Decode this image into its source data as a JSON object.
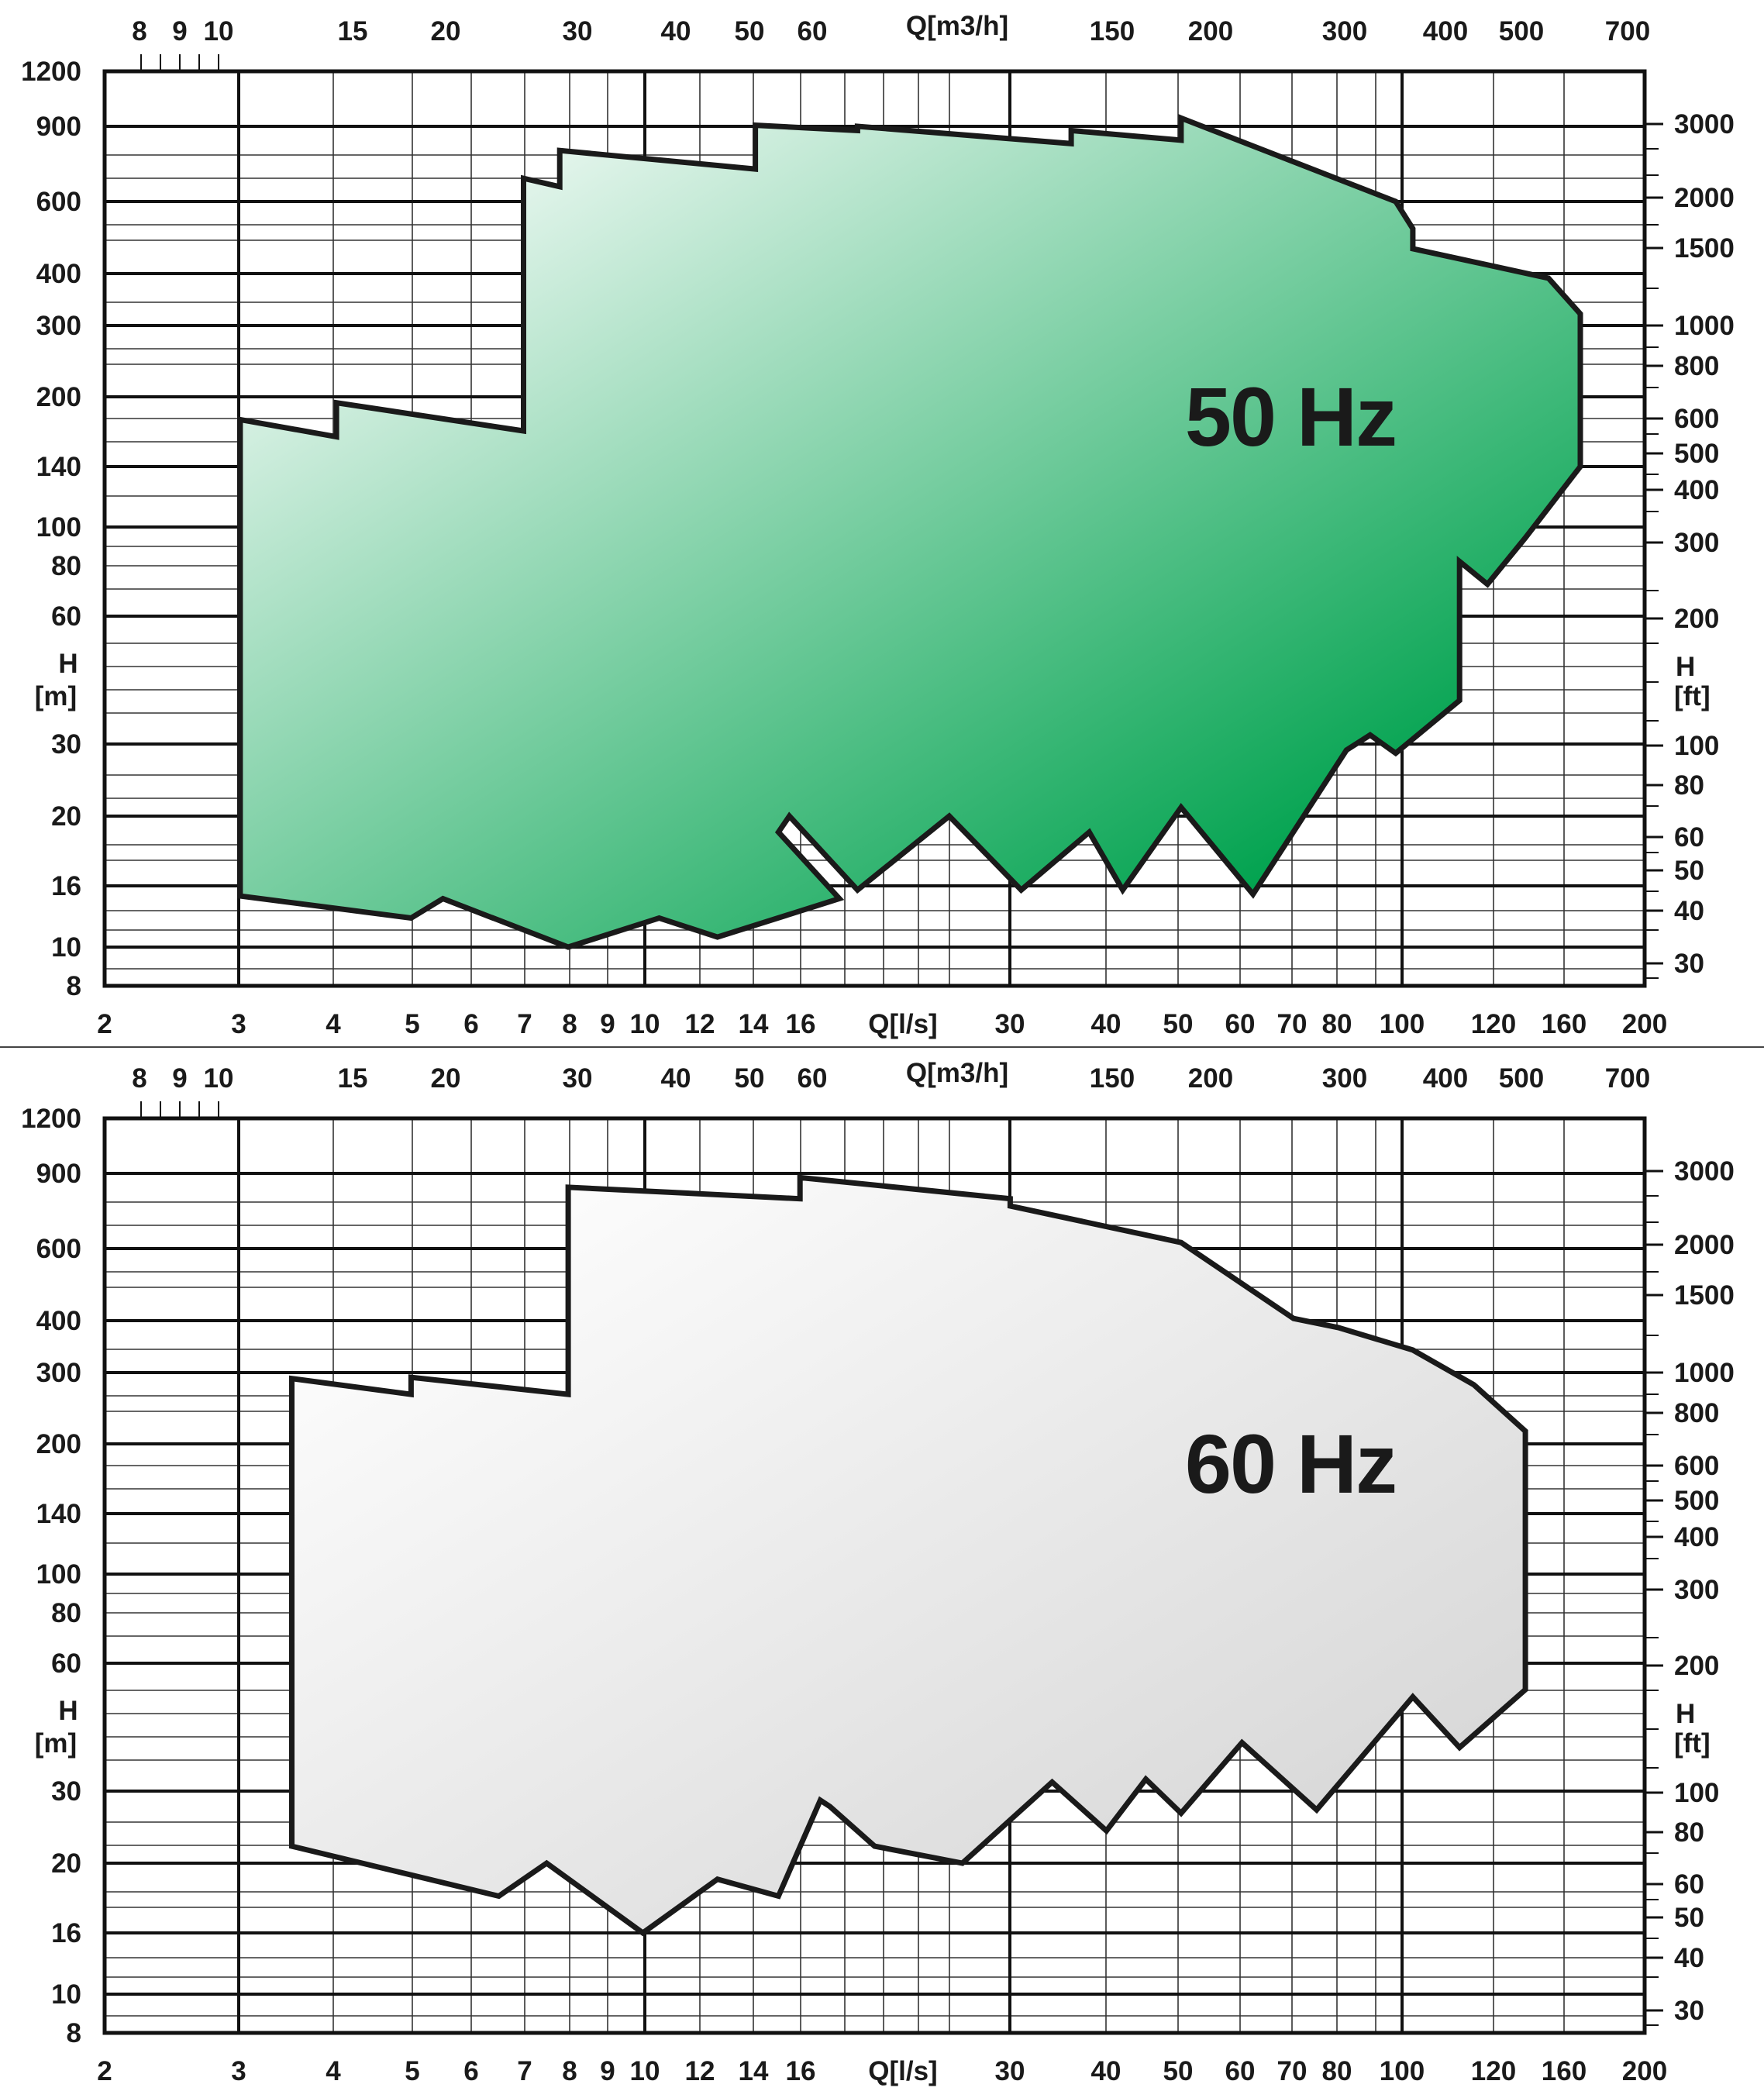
{
  "chart_data": [
    {
      "type": "area",
      "title": "50 Hz",
      "x_axis_bottom": {
        "label": "Q[l/s]",
        "scale": "log",
        "range": [
          2,
          200
        ],
        "ticks": [
          "2",
          "3",
          "4",
          "5",
          "6",
          "7",
          "8",
          "9",
          "10",
          "12",
          "14",
          "16",
          "30",
          "40",
          "50",
          "60",
          "70",
          "80",
          "100",
          "120",
          "160",
          "200"
        ]
      },
      "x_axis_top": {
        "label": "Q[m3/h]",
        "scale": "log",
        "ticks": [
          "8",
          "9",
          "10",
          "15",
          "20",
          "30",
          "40",
          "50",
          "60",
          "150",
          "200",
          "300",
          "400",
          "500",
          "700"
        ]
      },
      "y_axis_left": {
        "label_line1": "H",
        "label_line2": "[m]",
        "ticks": [
          "1200",
          "900",
          "600",
          "400",
          "300",
          "200",
          "140",
          "100",
          "80",
          "60",
          "30",
          "20",
          "16",
          "10",
          "8"
        ]
      },
      "y_axis_right": {
        "label_line1": "H",
        "label_line2": "[ft]",
        "ticks": [
          "3000",
          "2000",
          "1500",
          "1000",
          "800",
          "600",
          "500",
          "400",
          "300",
          "200",
          "100",
          "80",
          "60",
          "50",
          "40",
          "30"
        ]
      },
      "grid": true,
      "fill_gradient": [
        "#ffffff",
        "#00a24e"
      ],
      "series": [
        {
          "values": [
            [
              3,
              178
            ],
            [
              4,
              163
            ],
            [
              4,
              194
            ],
            [
              7,
              168
            ],
            [
              7,
              680
            ],
            [
              7.8,
              650
            ],
            [
              7.8,
              790
            ],
            [
              14,
              715
            ],
            [
              14,
              905
            ],
            [
              19,
              880
            ],
            [
              19,
              900
            ],
            [
              36,
              820
            ],
            [
              36,
              880
            ],
            [
              50,
              835
            ],
            [
              50,
              940
            ],
            [
              95,
              600
            ],
            [
              100,
              515
            ],
            [
              100,
              460
            ],
            [
              150,
              390
            ],
            [
              165,
              320
            ],
            [
              165,
              225
            ],
            [
              165,
              140
            ],
            [
              140,
              94
            ],
            [
              125,
              72
            ],
            [
              115,
              82
            ],
            [
              115,
              38
            ],
            [
              95,
              28.5
            ],
            [
              88,
              31.5
            ],
            [
              82,
              29
            ],
            [
              62,
              15
            ],
            [
              50,
              21
            ],
            [
              42,
              15.5
            ],
            [
              38,
              19
            ],
            [
              31,
              15.5
            ],
            [
              25,
              20
            ],
            [
              19,
              15.5
            ],
            [
              15.5,
              20
            ],
            [
              15,
              19
            ],
            [
              18,
              14.5
            ],
            [
              12.5,
              10.8
            ],
            [
              10.5,
              12.5
            ],
            [
              8,
              10
            ],
            [
              5.5,
              14.5
            ],
            [
              5,
              12.5
            ],
            [
              3,
              14.8
            ],
            [
              3,
              178
            ]
          ]
        }
      ]
    },
    {
      "type": "area",
      "title": "60 Hz",
      "x_axis_bottom": {
        "label": "Q[l/s]",
        "scale": "log",
        "range": [
          2,
          200
        ],
        "ticks": [
          "2",
          "3",
          "4",
          "5",
          "6",
          "7",
          "8",
          "9",
          "10",
          "12",
          "14",
          "16",
          "30",
          "40",
          "50",
          "60",
          "70",
          "80",
          "100",
          "120",
          "160",
          "200"
        ]
      },
      "x_axis_top": {
        "label": "Q[m3/h]",
        "scale": "log",
        "ticks": [
          "8",
          "9",
          "10",
          "15",
          "20",
          "30",
          "40",
          "50",
          "60",
          "150",
          "200",
          "300",
          "400",
          "500",
          "700"
        ]
      },
      "y_axis_left": {
        "label_line1": "H",
        "label_line2": "[m]",
        "ticks": [
          "1200",
          "900",
          "600",
          "400",
          "300",
          "200",
          "140",
          "100",
          "80",
          "60",
          "30",
          "20",
          "16",
          "10",
          "8"
        ]
      },
      "y_axis_right": {
        "label_line1": "H",
        "label_line2": "[ft]",
        "ticks": [
          "3000",
          "2000",
          "1500",
          "1000",
          "800",
          "600",
          "500",
          "400",
          "300",
          "200",
          "100",
          "80",
          "60",
          "50",
          "40",
          "30"
        ]
      },
      "grid": true,
      "fill_gradient": [
        "#ffffff",
        "#d4d4d4"
      ],
      "series": [
        {
          "values": [
            [
              3.5,
              290
            ],
            [
              5,
              265
            ],
            [
              5,
              292
            ],
            [
              8,
              265
            ],
            [
              8,
              835
            ],
            [
              16,
              785
            ],
            [
              16,
              880
            ],
            [
              30,
              785
            ],
            [
              30,
              755
            ],
            [
              50,
              620
            ],
            [
              70,
              405
            ],
            [
              80,
              385
            ],
            [
              100,
              340
            ],
            [
              120,
              280
            ],
            [
              140,
              215
            ],
            [
              140,
              130
            ],
            [
              140,
              52
            ],
            [
              115,
              38
            ],
            [
              100,
              50
            ],
            [
              75,
              27
            ],
            [
              60,
              39
            ],
            [
              50,
              26.5
            ],
            [
              45,
              32
            ],
            [
              40,
              24
            ],
            [
              34,
              31.5
            ],
            [
              26,
              20
            ],
            [
              20,
              22
            ],
            [
              17.5,
              27.5
            ],
            [
              17,
              28.5
            ],
            [
              15,
              18
            ],
            [
              12.5,
              19
            ],
            [
              10,
              16
            ],
            [
              7.5,
              20
            ],
            [
              6.5,
              18
            ],
            [
              3.5,
              22
            ],
            [
              3.5,
              290
            ]
          ]
        }
      ]
    }
  ]
}
